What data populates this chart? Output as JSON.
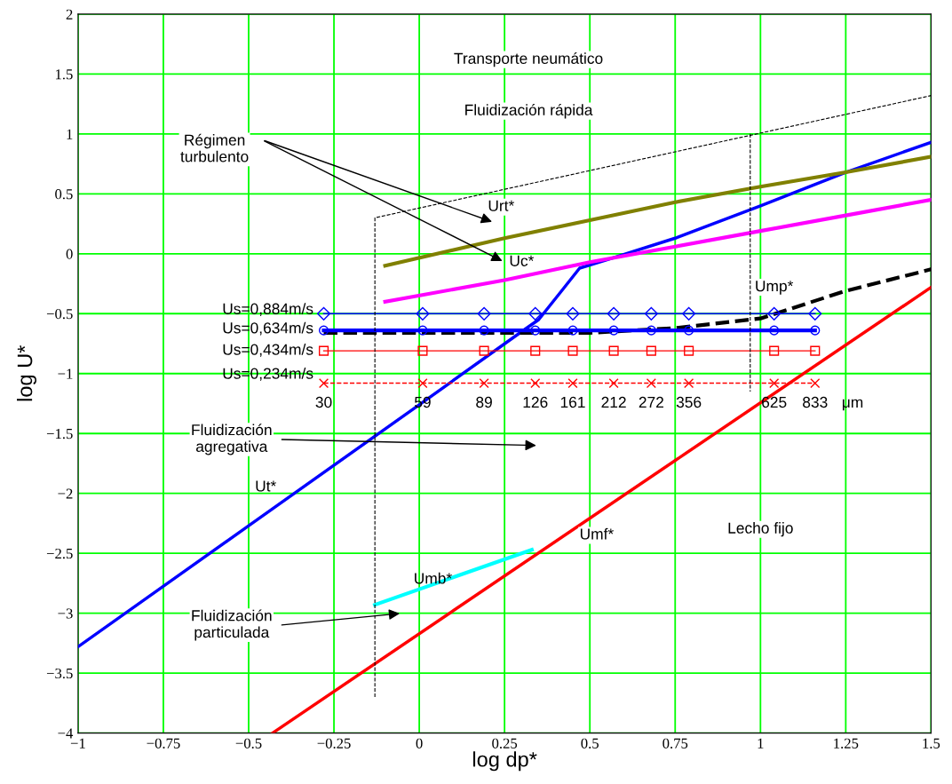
{
  "chart_data": {
    "type": "line",
    "xlabel": "log dp*",
    "ylabel": "log U*",
    "xlim": [
      -1,
      1.5
    ],
    "ylim": [
      -4,
      2
    ],
    "xticks": [
      -1,
      -0.75,
      -0.5,
      -0.25,
      0,
      0.25,
      0.5,
      0.75,
      1,
      1.25,
      1.5
    ],
    "yticks": [
      -4,
      -3.5,
      -3,
      -2.5,
      -2,
      -1.5,
      -1,
      -0.5,
      0,
      0.5,
      1,
      1.5,
      2
    ],
    "grid": true,
    "series": [
      {
        "color": "#0000ff",
        "x": [
          -1,
          -0.5,
          0,
          0.3,
          0.35,
          0.42,
          0.47,
          0.55,
          0.75,
          1.0,
          1.25,
          1.5
        ],
        "values": [
          -3.28,
          -2.27,
          -1.26,
          -0.65,
          -0.55,
          -0.3,
          -0.12,
          -0.05,
          0.13,
          0.4,
          0.68,
          0.93
        ]
      },
      {
        "color": "#808000",
        "x": [
          -0.1,
          0.25,
          0.5,
          0.75,
          1.0,
          1.25,
          1.5
        ],
        "values": [
          -0.1,
          0.13,
          0.28,
          0.43,
          0.56,
          0.68,
          0.81
        ]
      },
      {
        "color": "#ff00ff",
        "x": [
          -0.1,
          0.25,
          0.5,
          0.75,
          1.0,
          1.25,
          1.5
        ],
        "values": [
          -0.4,
          -0.22,
          -0.07,
          0.06,
          0.19,
          0.32,
          0.45
        ]
      },
      {
        "color": "#000000",
        "line_style": "dashed",
        "x": [
          -0.28,
          0.5,
          0.75,
          1.0,
          1.25,
          1.5
        ],
        "values": [
          -0.66,
          -0.66,
          -0.62,
          -0.54,
          -0.31,
          -0.13
        ]
      },
      {
        "color": "#ff0000",
        "x": [
          -0.43,
          1.5
        ],
        "values": [
          -4,
          -0.28
        ]
      },
      {
        "color": "#00ffff",
        "x": [
          -0.13,
          0.33
        ],
        "values": [
          -2.93,
          -2.47
        ]
      },
      {
        "color": "#0000ff",
        "marker": "diamond",
        "x": [
          -0.28,
          0.01,
          0.19,
          0.34,
          0.45,
          0.57,
          0.68,
          0.79,
          1.04,
          1.16
        ],
        "values": [
          -0.5,
          -0.5,
          -0.5,
          -0.5,
          -0.5,
          -0.5,
          -0.5,
          -0.5,
          -0.5,
          -0.5
        ]
      },
      {
        "color": "#0000ff",
        "marker": "circle",
        "x": [
          -0.28,
          0.01,
          0.19,
          0.34,
          0.45,
          0.57,
          0.68,
          0.79,
          1.04,
          1.16
        ],
        "values": [
          -0.64,
          -0.64,
          -0.64,
          -0.64,
          -0.64,
          -0.64,
          -0.64,
          -0.64,
          -0.64,
          -0.64
        ]
      },
      {
        "color": "#ff0000",
        "marker": "square",
        "x": [
          -0.28,
          0.01,
          0.19,
          0.34,
          0.45,
          0.57,
          0.68,
          0.79,
          1.04,
          1.16
        ],
        "values": [
          -0.81,
          -0.81,
          -0.81,
          -0.81,
          -0.81,
          -0.81,
          -0.81,
          -0.81,
          -0.81,
          -0.81
        ]
      },
      {
        "color": "#ff0000",
        "marker": "cross",
        "line_style": "dashed",
        "x": [
          -0.28,
          0.01,
          0.19,
          0.34,
          0.45,
          0.57,
          0.68,
          0.79,
          1.04,
          1.16
        ],
        "values": [
          -1.08,
          -1.08,
          -1.08,
          -1.08,
          -1.08,
          -1.08,
          -1.08,
          -1.08,
          -1.08,
          -1.08
        ]
      },
      {
        "color": "#000000",
        "line_style": "dashed",
        "x": [
          -0.13,
          -0.13,
          1.5
        ],
        "values": [
          -3.7,
          0.3,
          1.32
        ]
      },
      {
        "color": "#000000",
        "line_style": "dashed",
        "x": [
          0.97,
          0.97
        ],
        "values": [
          1.0,
          -1.15
        ]
      }
    ],
    "annotations": [
      "Transporte neumático",
      "Fluidización rápida",
      "Régimen\nturbulento",
      "Fluidización\nagregativa",
      "Fluidización\nparticulada",
      "Lecho fijo",
      "Urt*",
      "Uc*",
      "Ump*",
      "Ut*",
      "Umf*",
      "Umb*",
      "Us=0,884m/s",
      "Us=0,634m/s",
      "Us=0,434m/s",
      "Us=0,234m/s",
      "30",
      "59",
      "89",
      "126",
      "161",
      "212",
      "272",
      "356",
      "625",
      "833",
      "μm"
    ]
  }
}
